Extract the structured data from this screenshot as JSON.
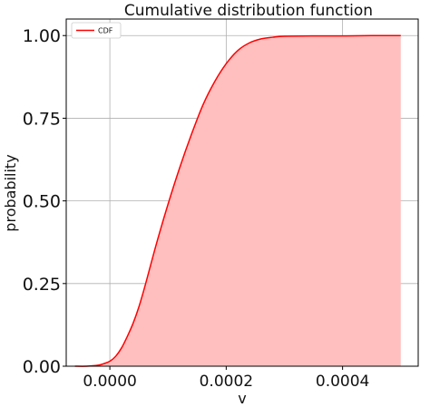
{
  "chart_data": {
    "type": "area",
    "title": "Cumulative distribution function",
    "xlabel": "v",
    "ylabel": "probability",
    "xlim": [
      -7.5e-05,
      0.00053
    ],
    "ylim": [
      0.0,
      1.05
    ],
    "grid": true,
    "legend_position": "top-left",
    "x_ticks": [
      0.0,
      0.0002,
      0.0004
    ],
    "x_tick_labels": [
      "0.0000",
      "0.0002",
      "0.0004"
    ],
    "y_ticks": [
      0.0,
      0.25,
      0.5,
      0.75,
      1.0
    ],
    "y_tick_labels": [
      "0.00",
      "0.25",
      "0.50",
      "0.75",
      "1.00"
    ],
    "series": [
      {
        "name": "CDF",
        "color": "#ff0000",
        "fill_color": "#ffbfbf",
        "x": [
          -6e-05,
          -4e-05,
          -2e-05,
          -1e-05,
          0.0,
          1e-05,
          2e-05,
          3e-05,
          4e-05,
          5e-05,
          6e-05,
          8e-05,
          0.0001,
          0.00012,
          0.00014,
          0.00016,
          0.00018,
          0.0002,
          0.00022,
          0.00024,
          0.00026,
          0.00028,
          0.0003,
          0.00035,
          0.0004,
          0.00045,
          0.0005
        ],
        "y": [
          0.0,
          0.0,
          0.003,
          0.008,
          0.015,
          0.03,
          0.055,
          0.09,
          0.13,
          0.18,
          0.24,
          0.37,
          0.49,
          0.6,
          0.7,
          0.79,
          0.86,
          0.915,
          0.955,
          0.978,
          0.99,
          0.995,
          0.998,
          0.999,
          0.999,
          1.0,
          1.0
        ]
      }
    ]
  }
}
